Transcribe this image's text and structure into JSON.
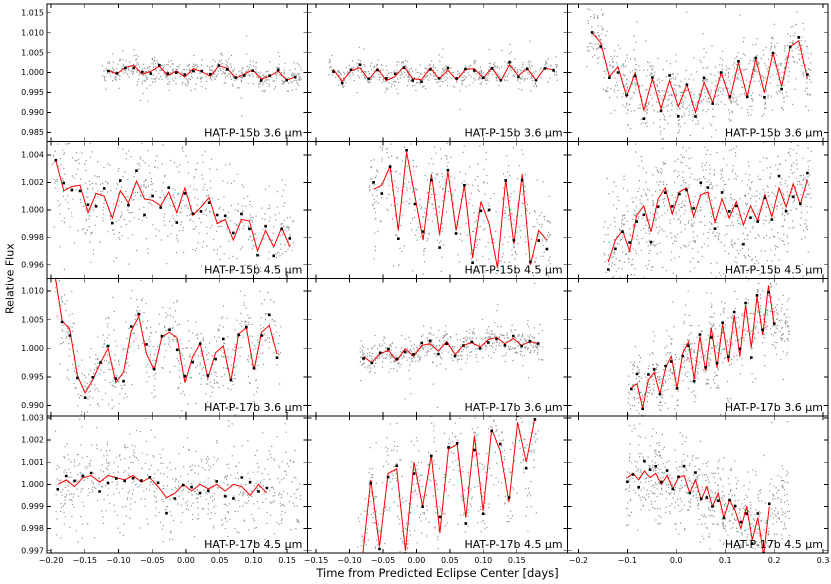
{
  "figure": {
    "ylabel": "Relative Flux",
    "xlabel": "Time from Predicted Eclipse Center [days]",
    "bg_color": "#ffffff",
    "axis_color": "#000000",
    "line_color": "#ff0000",
    "scatter_color": "#3c3c3c",
    "marker_color": "#000000"
  },
  "chart_data": {
    "type": "scatter",
    "title": "",
    "xlabel": "Time from Predicted Eclipse Center [days]",
    "ylabel": "Relative Flux",
    "grid": false,
    "legend": "none",
    "layout": "4 rows x 3 columns, shared y per row, shared x per column",
    "rows": [
      {
        "ylim": [
          0.9828,
          1.0172
        ],
        "yticks": [
          0.985,
          0.99,
          0.995,
          1.0,
          1.005,
          1.01,
          1.015
        ],
        "ytick_labels": [
          "0.985",
          "0.990",
          "0.995",
          "1.000",
          "1.005",
          "1.010",
          "1.015"
        ]
      },
      {
        "ylim": [
          0.995,
          1.005
        ],
        "yticks": [
          0.996,
          0.998,
          1.0,
          1.002,
          1.004
        ],
        "ytick_labels": [
          "0.996",
          "0.998",
          "1.000",
          "1.002",
          "1.004"
        ]
      },
      {
        "ylim": [
          0.9882,
          1.0122
        ],
        "yticks": [
          0.99,
          0.995,
          1.0,
          1.005,
          1.01
        ],
        "ytick_labels": [
          "0.990",
          "0.995",
          "1.000",
          "1.005",
          "1.010"
        ]
      },
      {
        "ylim": [
          0.9969,
          1.0031
        ],
        "yticks": [
          0.997,
          0.998,
          0.999,
          1.0,
          1.001,
          1.002,
          1.003
        ],
        "ytick_labels": [
          "0.997",
          "0.998",
          "0.999",
          "1.000",
          "1.001",
          "1.002",
          "1.003"
        ]
      }
    ],
    "cols": [
      {
        "xlim": [
          -0.206,
          0.18
        ],
        "xticks": [
          -0.2,
          -0.15,
          -0.1,
          -0.05,
          0.0,
          0.05,
          0.1,
          0.15
        ],
        "xtick_labels": [
          "−0.20",
          "−0.15",
          "−0.10",
          "−0.05",
          "0.00",
          "0.05",
          "0.10",
          "0.15"
        ]
      },
      {
        "xlim": [
          -0.163,
          0.226
        ],
        "xticks": [
          -0.15,
          -0.1,
          -0.05,
          0.0,
          0.05,
          0.1,
          0.15
        ],
        "xtick_labels": [
          "−0.15",
          "−0.10",
          "−0.05",
          "0.00",
          "0.05",
          "0.10",
          "0.15"
        ]
      },
      {
        "xlim": [
          -0.222,
          0.31
        ],
        "xticks": [
          -0.2,
          -0.1,
          0.0,
          0.1,
          0.2,
          0.3
        ],
        "xtick_labels": [
          "−0.2",
          "−0.1",
          "0.0",
          "0.1",
          "0.2",
          "0.3"
        ]
      }
    ],
    "panels": [
      {
        "row": 0,
        "col": 0,
        "label": "HAT-P-15b 3.6 μm",
        "binned": {
          "x_start": -0.115,
          "x_end": 0.162,
          "y": [
            1.0005,
            0.9997,
            1.0013,
            1.0018,
            0.9996,
            1.0003,
            1.0016,
            0.9993,
            1.0004,
            0.9989,
            1.001,
            1.0002,
            0.9991,
            1.0017,
            1.0011,
            0.9986,
            0.9996,
            1.0007,
            0.9984,
            0.9991,
            1.0004,
            0.9981,
            0.9989
          ]
        },
        "scatter": {
          "n": 520,
          "sigma": 0.0017,
          "xmin": -0.125,
          "xmax": 0.17,
          "seed": 11
        }
      },
      {
        "row": 0,
        "col": 1,
        "label": "HAT-P-15b 3.6 μm",
        "binned": {
          "x_start": -0.124,
          "x_end": 0.205,
          "y": [
            1.0008,
            0.9978,
            1.0005,
            1.0012,
            0.9982,
            1.001,
            0.998,
            0.999,
            1.0015,
            0.9985,
            0.9982,
            1.0012,
            0.9984,
            1.0006,
            0.9981,
            1.0008,
            1.001,
            0.9986,
            1.0013,
            0.9979,
            1.002,
            0.9992,
            1.001,
            0.9981,
            1.0012,
            1.0006
          ]
        },
        "scatter": {
          "n": 520,
          "sigma": 0.0015,
          "xmin": -0.132,
          "xmax": 0.21,
          "seed": 12
        }
      },
      {
        "row": 0,
        "col": 2,
        "label": "HAT-P-15b 3.6 μm",
        "binned": {
          "x_start": -0.172,
          "x_end": 0.268,
          "y": [
            1.01,
            1.0075,
            0.999,
            1.0015,
            0.994,
            1.0,
            0.9905,
            0.9985,
            0.991,
            0.998,
            0.9915,
            0.997,
            0.99,
            0.9975,
            0.9925,
            1.0,
            0.9935,
            1.0025,
            0.994,
            1.0035,
            0.995,
            1.005,
            0.9965,
            1.0065,
            1.008,
            0.9985
          ]
        },
        "scatter": {
          "n": 850,
          "sigma": 0.0042,
          "xmin": -0.185,
          "xmax": 0.275,
          "seed": 13
        }
      },
      {
        "row": 1,
        "col": 0,
        "label": "HAT-P-15b 4.5 μm",
        "binned": {
          "x_start": -0.193,
          "x_end": 0.154,
          "y": [
            1.0036,
            1.0014,
            1.0017,
            1.0018,
            0.9998,
            1.0012,
            1.001,
            0.9994,
            1.0014,
            1.0005,
            1.0021,
            1.0008,
            1.0007,
            1.0003,
            1.0013,
            0.9998,
            1.0016,
            0.9996,
            1.0002,
            1.0009,
            0.999,
            0.9993,
            0.9978,
            0.9993,
            0.9992,
            0.997,
            0.9985,
            0.9973,
            0.9987,
            0.9973
          ]
        },
        "scatter": {
          "n": 620,
          "sigma": 0.002,
          "xmin": -0.2,
          "xmax": 0.16,
          "seed": 14
        }
      },
      {
        "row": 1,
        "col": 1,
        "label": "HAT-P-15b 4.5 μm",
        "binned": {
          "x_start": -0.064,
          "x_end": 0.195,
          "y": [
            1.0015,
            1.0018,
            1.0032,
            0.9985,
            1.0042,
            1.001,
            0.9978,
            1.0026,
            0.9982,
            1.0028,
            0.9985,
            1.0018,
            0.9965,
            1.0006,
            0.999,
            0.9958,
            1.0022,
            0.9975,
            1.0026,
            0.996,
            0.9985,
            0.9978
          ]
        },
        "scatter": {
          "n": 520,
          "sigma": 0.0021,
          "xmin": -0.072,
          "xmax": 0.2,
          "seed": 15
        }
      },
      {
        "row": 1,
        "col": 2,
        "label": "HAT-P-15b 4.5 μm",
        "binned": {
          "x_start": -0.139,
          "x_end": 0.268,
          "y": [
            0.9962,
            0.9978,
            0.9985,
            0.997,
            0.9996,
            1.0003,
            0.9984,
            1.0008,
            1.0016,
            0.9997,
            1.0013,
            1.0016,
            0.9995,
            1.0011,
            1.0013,
            0.9991,
            1.0008,
            0.9994,
            1.0006,
            0.9989,
            1.0003,
            0.9992,
            1.0011,
            0.9995,
            1.0016,
            1.0002,
            1.0019,
            1.0004,
            1.0022
          ]
        },
        "scatter": {
          "n": 900,
          "sigma": 0.0023,
          "xmin": -0.15,
          "xmax": 0.275,
          "seed": 16
        }
      },
      {
        "row": 2,
        "col": 0,
        "label": "HAT-P-17b 3.6 μm",
        "binned": {
          "x_start": -0.195,
          "x_end": 0.135,
          "y": [
            1.0135,
            1.0048,
            1.0033,
            0.9952,
            0.9922,
            0.9945,
            0.9975,
            1.0,
            0.994,
            0.9958,
            1.003,
            1.0056,
            0.999,
            0.9962,
            1.002,
            1.0028,
            1.0018,
            0.994,
            0.9985,
            1.0008,
            0.9948,
            0.9992,
            1.0004,
            0.9942,
            1.0025,
            1.0036,
            0.9962,
            1.0028,
            1.004,
            0.999
          ]
        },
        "scatter": {
          "n": 620,
          "sigma": 0.0036,
          "xmin": -0.2,
          "xmax": 0.14,
          "seed": 17
        }
      },
      {
        "row": 2,
        "col": 1,
        "label": "HAT-P-17b 3.6 μm",
        "binned": {
          "x_start": -0.079,
          "x_end": 0.182,
          "y": [
            0.9985,
            0.9975,
            0.9991,
            0.9996,
            0.9978,
            0.9999,
            0.9986,
            1.0005,
            1.0008,
            0.9995,
            1.0012,
            0.9989,
            1.0005,
            1.001,
            1.0002,
            1.0015,
            1.0019,
            1.0008,
            1.0017,
            1.0005,
            1.0012,
            1.0008
          ]
        },
        "scatter": {
          "n": 520,
          "sigma": 0.0013,
          "xmin": -0.085,
          "xmax": 0.188,
          "seed": 18
        }
      },
      {
        "row": 2,
        "col": 2,
        "label": "HAT-P-17b 3.6 μm",
        "binned": {
          "x_start": -0.092,
          "x_end": 0.2,
          "y": [
            0.9931,
            0.9938,
            0.9895,
            0.9945,
            0.9958,
            0.992,
            0.9966,
            0.9986,
            0.993,
            0.9991,
            1.0011,
            0.9946,
            1.0021,
            0.9961,
            1.0036,
            0.9966,
            1.0043,
            0.9976,
            1.0058,
            0.9986,
            1.0076,
            1.0001,
            1.0091,
            1.0023,
            1.011,
            1.0041
          ]
        },
        "scatter": {
          "n": 700,
          "sigma": 0.003,
          "xmin": -0.1,
          "xmax": 0.23,
          "seed": 19
        }
      },
      {
        "row": 3,
        "col": 0,
        "label": "HAT-P-17b 4.5 μm",
        "binned": {
          "x_start": -0.19,
          "x_end": 0.12,
          "y": [
            1.0,
            1.0002,
            0.9999,
            1.0003,
            1.0004,
            1.0001,
            1.0004,
            1.0003,
            1.0002,
            1.0004,
            1.0001,
            1.0003,
            0.9999,
            0.9994,
            0.9996,
            1.0,
            0.9997,
            1.0,
            0.9998,
            1.0,
            0.9997,
            1.0,
            0.9999,
            0.9995,
            1.0,
            0.9996
          ]
        },
        "scatter": {
          "n": 620,
          "sigma": 0.0011,
          "xmin": -0.195,
          "xmax": 0.17,
          "seed": 20
        }
      },
      {
        "row": 3,
        "col": 1,
        "label": "HAT-P-17b 4.5 μm",
        "binned": {
          "x_start": -0.081,
          "x_end": 0.177,
          "y": [
            0.9966,
            1.0002,
            0.9972,
            1.0005,
            1.0007,
            0.997,
            1.001,
            0.999,
            1.0013,
            0.9978,
            1.0016,
            1.0018,
            0.9985,
            1.0022,
            0.9988,
            1.0025,
            1.0015,
            0.9992,
            1.0028,
            1.001,
            1.003
          ]
        },
        "scatter": {
          "n": 560,
          "sigma": 0.0012,
          "xmin": -0.09,
          "xmax": 0.182,
          "seed": 21
        }
      },
      {
        "row": 3,
        "col": 2,
        "label": "HAT-P-17b 4.5 μm",
        "binned": {
          "x_start": -0.1,
          "x_end": 0.19,
          "y": [
            1.0003,
            1.0005,
            1.0002,
            1.0006,
            1.0003,
            1.0005,
            1.0,
            1.0004,
            0.9998,
            1.0003,
            1.0004,
            0.9996,
            1.0002,
            0.9993,
            0.9999,
            0.999,
            0.9996,
            0.9985,
            0.9993,
            0.9988,
            0.998,
            0.999,
            0.9975,
            0.9985,
            0.9968,
            0.999
          ]
        },
        "scatter": {
          "n": 700,
          "sigma": 0.001,
          "xmin": -0.105,
          "xmax": 0.23,
          "seed": 22
        }
      }
    ]
  }
}
